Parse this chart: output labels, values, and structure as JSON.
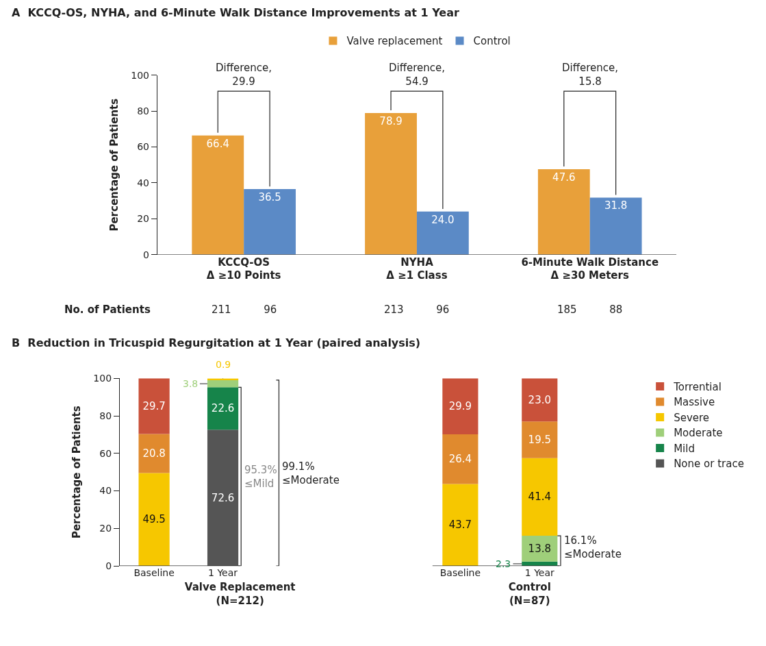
{
  "chart_data": [
    {
      "type": "bar",
      "title": "A  KCCQ-OS, NYHA, and 6-Minute Walk Distance Improvements at 1 Year",
      "ylabel": "Percentage of Patients",
      "categories": [
        "KCCQ-OS\nΔ ≥10 Points",
        "NYHA\nΔ ≥1 Class",
        "6-Minute Walk Distance\nΔ ≥30 Meters"
      ],
      "series": [
        {
          "name": "Valve replacement",
          "color": "#e8a03a",
          "values": [
            66.4,
            78.9,
            47.6
          ],
          "value_labels": [
            "66.4",
            "78.9",
            "47.6"
          ]
        },
        {
          "name": "Control",
          "color": "#5b8ac6",
          "values": [
            36.5,
            24.0,
            31.8
          ],
          "value_labels": [
            "36.5",
            "24.0",
            "31.8"
          ]
        }
      ],
      "ylim": [
        0,
        100
      ],
      "yticks": [
        0,
        20,
        40,
        60,
        80,
        100
      ],
      "legend": "top",
      "annotations": [
        "Difference,\n29.9",
        "Difference,\n54.9",
        "Difference,\n15.8",
        "No. of Patients",
        "211          96",
        "213          96",
        "185          88"
      ]
    },
    {
      "type": "bar",
      "stacked": true,
      "title": "B  Reduction in Tricuspid Regurgitation at 1 Year (paired analysis)",
      "ylabel": "Percentage of Patients",
      "xlabel": "Valve Replacement\n(N=212)",
      "categories": [
        "Baseline",
        "1 Year"
      ],
      "series": [
        {
          "color": "#555555",
          "values": [
            null,
            72.6
          ],
          "value_labels": [
            null,
            "72.6"
          ]
        },
        {
          "color": "#16844a",
          "values": [
            null,
            22.6
          ],
          "value_labels": [
            null,
            "22.6"
          ]
        },
        {
          "color": "#9fcf7a",
          "values": [
            null,
            3.8
          ],
          "value_labels": [
            null,
            "3.8"
          ]
        },
        {
          "color": "#f6c700",
          "values": [
            49.5,
            0.9
          ],
          "value_labels": [
            "49.5",
            "0.9"
          ]
        },
        {
          "color": "#e08a2e",
          "values": [
            20.8,
            null
          ],
          "value_labels": [
            "20.8",
            null
          ]
        },
        {
          "color": "#c9513a",
          "values": [
            29.7,
            null
          ],
          "value_labels": [
            "29.7",
            null
          ]
        }
      ],
      "ylim": [
        0,
        100
      ],
      "yticks": [
        0,
        20,
        40,
        60,
        80,
        100
      ],
      "annotations": [
        "95.3%\n≤Mild",
        "99.1%\n≤Moderate"
      ]
    },
    {
      "type": "bar",
      "stacked": true,
      "xlabel": "Control\n(N=87)",
      "categories": [
        "Baseline",
        "1 Year"
      ],
      "series": [
        {
          "name": "None or trace",
          "color": "#555555",
          "values": [
            null,
            null
          ],
          "value_labels": [
            null,
            null
          ]
        },
        {
          "name": "Mild",
          "color": "#16844a",
          "values": [
            null,
            2.3
          ],
          "value_labels": [
            null,
            "2.3"
          ]
        },
        {
          "name": "Moderate",
          "color": "#9fcf7a",
          "values": [
            null,
            13.8
          ],
          "value_labels": [
            null,
            "13.8"
          ]
        },
        {
          "name": "Severe",
          "color": "#f6c700",
          "values": [
            43.7,
            41.4
          ],
          "value_labels": [
            "43.7",
            "41.4"
          ]
        },
        {
          "name": "Massive",
          "color": "#e08a2e",
          "values": [
            26.4,
            19.5
          ],
          "value_labels": [
            "26.4",
            "19.5"
          ]
        },
        {
          "name": "Torrential",
          "color": "#c9513a",
          "values": [
            29.9,
            23.0
          ],
          "value_labels": [
            "29.9",
            "23.0"
          ]
        }
      ],
      "ylim": [
        0,
        100
      ],
      "yticks": [
        0,
        20,
        40,
        60,
        80,
        100
      ],
      "tick_labels": "x",
      "legend": "right",
      "annotations": [
        "16.1%\n≤Moderate"
      ]
    }
  ]
}
